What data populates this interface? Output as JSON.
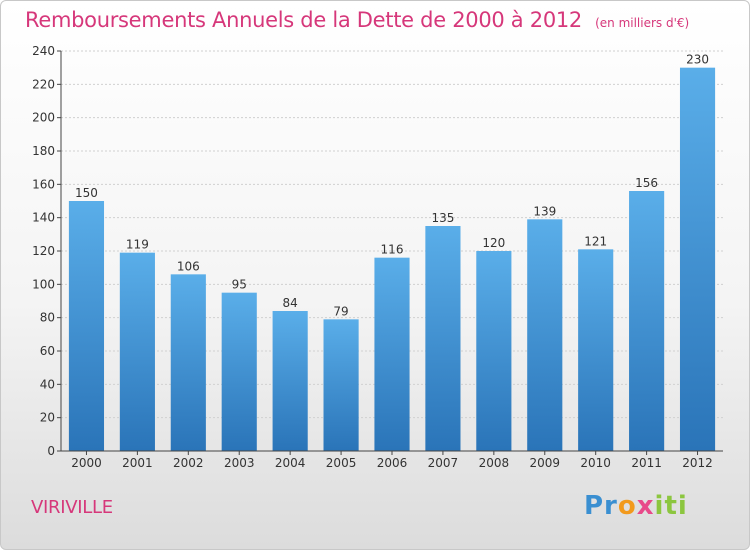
{
  "header": {
    "title": "Remboursements Annuels de la Dette de 2000 à 2012",
    "subtitle": "(en milliers d'€)"
  },
  "footer": {
    "commune": "VIRIVILLE",
    "logo": "Proxiti"
  },
  "colors": {
    "bar": "#3d8fd8",
    "accent": "#d6377a"
  },
  "chart_data": {
    "type": "bar",
    "title": "Remboursements Annuels de la Dette de 2000 à 2012",
    "subtitle": "(en milliers d'€)",
    "categories": [
      "2000",
      "2001",
      "2002",
      "2003",
      "2004",
      "2005",
      "2006",
      "2007",
      "2008",
      "2009",
      "2010",
      "2011",
      "2012"
    ],
    "values": [
      150,
      119,
      106,
      95,
      84,
      79,
      116,
      135,
      120,
      139,
      121,
      156,
      230
    ],
    "ylim": [
      0,
      240
    ],
    "yticks": [
      0,
      20,
      40,
      60,
      80,
      100,
      120,
      140,
      160,
      180,
      200,
      220,
      240
    ],
    "grid": true
  }
}
